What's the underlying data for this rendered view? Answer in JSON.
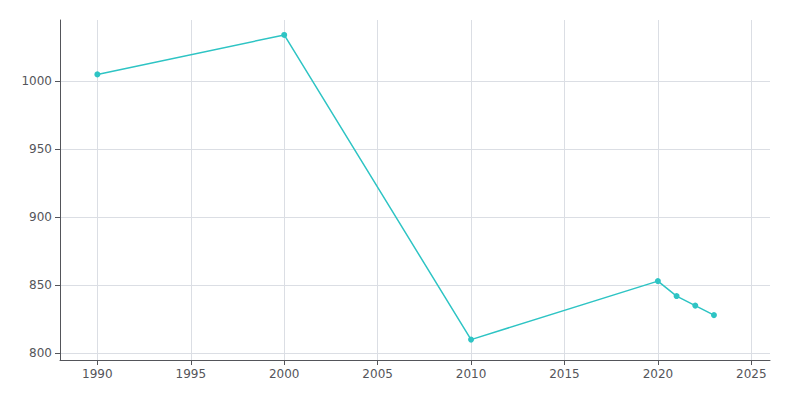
{
  "chart_data": {
    "type": "line",
    "x": [
      1990,
      2000,
      2010,
      2020,
      2021,
      2022,
      2023
    ],
    "values": [
      1005,
      1034,
      810,
      853,
      842,
      835,
      828
    ],
    "color": "#2ec4c4",
    "marker": "circle",
    "xlim": [
      1988,
      2026
    ],
    "ylim": [
      795,
      1045
    ],
    "xticks": [
      1990,
      1995,
      2000,
      2005,
      2010,
      2015,
      2020,
      2025
    ],
    "yticks": [
      800,
      850,
      900,
      950,
      1000
    ],
    "grid": true
  }
}
